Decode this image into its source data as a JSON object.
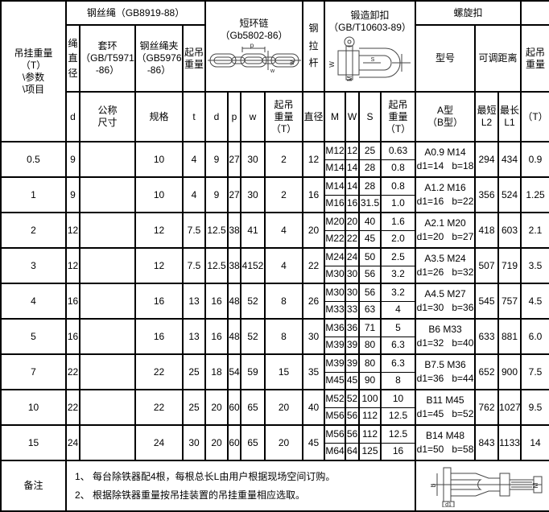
{
  "header": {
    "corner": "吊挂重量（T）\n\\参数\n\\项目",
    "wire_rope": {
      "title": "钢丝绳（GB8919-88）",
      "rope_dia": "绳直径",
      "thimble": "套环\n（GB/T5971\n-86）",
      "clamp": "钢丝绳夹\n（GB5976\n-86）",
      "lift": "起吊\n重量"
    },
    "chain": {
      "title": "短环链\n（Gb5802-86）"
    },
    "tie_rod": "钢拉杆",
    "shackle": {
      "title": "锻造卸扣\n（GB/T10603-89）"
    },
    "turnbuckle": {
      "title": "螺旋扣",
      "model": "型号",
      "adjust": "可调距离",
      "lift": "起吊\n重量"
    },
    "sub": {
      "d1": "d",
      "nominal": "公称\n尺寸",
      "spec": "规格",
      "t": "t",
      "d2": "d",
      "p": "p",
      "w": "w",
      "chain_lift": "起吊\n重量\n（T）",
      "dia": "直径",
      "m": "M",
      "w2": "W",
      "s": "S",
      "shackle_lift": "起吊\n重量\n（T）",
      "model_ab": "A型\n（B型）",
      "l2": "最短\nL2",
      "l1": "最长\nL1",
      "t_unit": "（T）"
    }
  },
  "rows": [
    {
      "weight": "0.5",
      "rope_dia": "9",
      "nominal": "",
      "spec": "10",
      "t": "4",
      "chain_d": "9",
      "chain_p": "27",
      "chain_w": "30",
      "chain_lift": "2",
      "rod_dia": "12",
      "shackle": [
        {
          "m": "M12",
          "w": "12",
          "s": "25",
          "lift": "0.63"
        },
        {
          "m": "M14",
          "w": "14",
          "s": "28",
          "lift": "0.8"
        }
      ],
      "model": "A0.9 M14",
      "dims": "d1=14   b=18",
      "l2": "294",
      "l1": "434",
      "lift": "0.9"
    },
    {
      "weight": "1",
      "rope_dia": "9",
      "nominal": "",
      "spec": "10",
      "t": "4",
      "chain_d": "9",
      "chain_p": "27",
      "chain_w": "30",
      "chain_lift": "2",
      "rod_dia": "16",
      "shackle": [
        {
          "m": "M14",
          "w": "14",
          "s": "28",
          "lift": "0.8"
        },
        {
          "m": "M16",
          "w": "16",
          "s": "31.5",
          "lift": "1.0"
        }
      ],
      "model": "A1.2 M16",
      "dims": "d1=16   b=22",
      "l2": "356",
      "l1": "524",
      "lift": "1.25"
    },
    {
      "weight": "2",
      "rope_dia": "12",
      "nominal": "",
      "spec": "12",
      "t": "7.5",
      "chain_d": "12.5",
      "chain_p": "38",
      "chain_w": "41",
      "chain_lift": "4",
      "rod_dia": "20",
      "shackle": [
        {
          "m": "M20",
          "w": "20",
          "s": "40",
          "lift": "1.6"
        },
        {
          "m": "M22",
          "w": "22",
          "s": "45",
          "lift": "2.0"
        }
      ],
      "model": "A2.1 M20",
      "dims": "d1=20   b=27",
      "l2": "418",
      "l1": "603",
      "lift": "2.1"
    },
    {
      "weight": "3",
      "rope_dia": "12",
      "nominal": "",
      "spec": "12",
      "t": "7.5",
      "chain_d": "12.5",
      "chain_p": "38",
      "chain_w": "4152",
      "chain_lift": "4",
      "rod_dia": "22",
      "shackle": [
        {
          "m": "M24",
          "w": "24",
          "s": "50",
          "lift": "2.5"
        },
        {
          "m": "M30",
          "w": "30",
          "s": "56",
          "lift": "3.2"
        }
      ],
      "model": "A3.5 M24",
      "dims": "d1=26   b=32",
      "l2": "507",
      "l1": "719",
      "lift": "3.5"
    },
    {
      "weight": "4",
      "rope_dia": "16",
      "nominal": "",
      "spec": "16",
      "t": "13",
      "chain_d": "16",
      "chain_p": "48",
      "chain_w": "52",
      "chain_lift": "8",
      "rod_dia": "26",
      "shackle": [
        {
          "m": "M30",
          "w": "30",
          "s": "56",
          "lift": "3.2"
        },
        {
          "m": "M33",
          "w": "33",
          "s": "63",
          "lift": "4"
        }
      ],
      "model": "A4.5 M27",
      "dims": "d1=30   b=36",
      "l2": "545",
      "l1": "757",
      "lift": "4.5"
    },
    {
      "weight": "5",
      "rope_dia": "16",
      "nominal": "",
      "spec": "16",
      "t": "13",
      "chain_d": "16",
      "chain_p": "48",
      "chain_w": "52",
      "chain_lift": "8",
      "rod_dia": "30",
      "shackle": [
        {
          "m": "M36",
          "w": "36",
          "s": "71",
          "lift": "5"
        },
        {
          "m": "M39",
          "w": "39",
          "s": "80",
          "lift": "6.3"
        }
      ],
      "model": "B6 M33",
      "dims": "d1=32   b=40",
      "l2": "633",
      "l1": "881",
      "lift": "6.0"
    },
    {
      "weight": "7",
      "rope_dia": "22",
      "nominal": "",
      "spec": "22",
      "t": "25",
      "chain_d": "18",
      "chain_p": "54",
      "chain_w": "59",
      "chain_lift": "15",
      "rod_dia": "35",
      "shackle": [
        {
          "m": "M39",
          "w": "39",
          "s": "80",
          "lift": "6.3"
        },
        {
          "m": "M45",
          "w": "45",
          "s": "90",
          "lift": "8"
        }
      ],
      "model": "B7.5 M36",
      "dims": "d1=36   b=44",
      "l2": "652",
      "l1": "900",
      "lift": "7.5"
    },
    {
      "weight": "10",
      "rope_dia": "22",
      "nominal": "",
      "spec": "22",
      "t": "25",
      "chain_d": "20",
      "chain_p": "60",
      "chain_w": "65",
      "chain_lift": "20",
      "rod_dia": "40",
      "shackle": [
        {
          "m": "M52",
          "w": "52",
          "s": "100",
          "lift": "10"
        },
        {
          "m": "M56",
          "w": "56",
          "s": "112",
          "lift": "12.5"
        }
      ],
      "model": "B11 M45",
      "dims": "d1=45   b=52",
      "l2": "762",
      "l1": "1027",
      "lift": "9.5"
    },
    {
      "weight": "15",
      "rope_dia": "24",
      "nominal": "",
      "spec": "24",
      "t": "30",
      "chain_d": "20",
      "chain_p": "60",
      "chain_w": "65",
      "chain_lift": "20",
      "rod_dia": "45",
      "shackle": [
        {
          "m": "M56",
          "w": "56",
          "s": "112",
          "lift": "12.5"
        },
        {
          "m": "M64",
          "w": "64",
          "s": "125",
          "lift": "16"
        }
      ],
      "model": "B14 M48",
      "dims": "d1=50   b=58",
      "l2": "843",
      "l1": "1133",
      "lift": "14"
    }
  ],
  "remarks": {
    "label": "备注",
    "text": "1、 每台除铁器配4根，每根总长L由用户根据现场空间订购。\n2、 根据除铁器重量按吊挂装置的吊挂重量相应选取。"
  },
  "diagrams": {
    "chain": {
      "p": "p",
      "w": "w"
    },
    "shackle": {
      "w": "W",
      "m": "M",
      "s": "S"
    },
    "turnbuckle": {
      "b": "b",
      "d1": "d1",
      "m": "M"
    }
  }
}
